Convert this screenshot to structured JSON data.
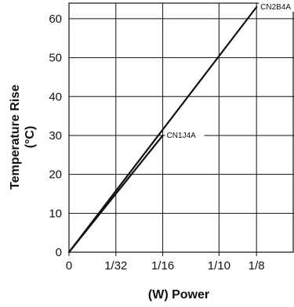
{
  "chart_data": {
    "type": "line",
    "title": "",
    "xlabel": "(W) Power",
    "ylabel_line1": "Temperature Rise",
    "ylabel_line2": "(°C)",
    "xlim": [
      0,
      0.15
    ],
    "ylim": [
      0,
      64
    ],
    "x_ticks": [
      {
        "value": 0,
        "label": "0"
      },
      {
        "value": 0.03125,
        "label": "1/32"
      },
      {
        "value": 0.0625,
        "label": "1/16"
      },
      {
        "value": 0.1,
        "label": "1/10"
      },
      {
        "value": 0.125,
        "label": "1/8"
      }
    ],
    "y_ticks": [
      0,
      10,
      20,
      30,
      40,
      50,
      60
    ],
    "x_gridlines": [
      0.03125,
      0.0625,
      0.1,
      0.125
    ],
    "y_gridlines": [
      10,
      20,
      30,
      40,
      50,
      60
    ],
    "grid": true,
    "series": [
      {
        "name": "CN1J4A",
        "x": [
          0,
          0.0625
        ],
        "y": [
          0,
          30
        ]
      },
      {
        "name": "CN2B4A",
        "x": [
          0,
          0.125
        ],
        "y": [
          0,
          63
        ]
      }
    ]
  }
}
